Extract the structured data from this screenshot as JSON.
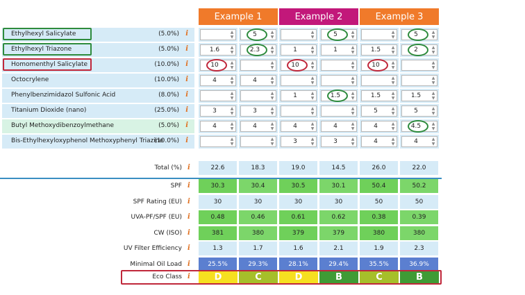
{
  "examples": [
    {
      "label": "Example 1",
      "color": "#f07a2a"
    },
    {
      "label": "Example 2",
      "color": "#c2187a"
    },
    {
      "label": "Example 3",
      "color": "#f07a2a"
    }
  ],
  "filters": [
    {
      "name": "Ethylhexyl Salicylate",
      "pct": "(5.0%)",
      "values": [
        "",
        "5",
        "",
        "5",
        "",
        "5"
      ]
    },
    {
      "name": "Ethylhexyl Triazone",
      "pct": "(5.0%)",
      "values": [
        "1.6",
        "2.3",
        "1",
        "1",
        "1.5",
        "2"
      ]
    },
    {
      "name": "Homomenthyl Salicylate",
      "pct": "(10.0%)",
      "values": [
        "10",
        "",
        "10",
        "",
        "10",
        ""
      ]
    },
    {
      "name": "Octocrylene",
      "pct": "(10.0%)",
      "values": [
        "4",
        "4",
        "",
        "",
        "",
        ""
      ]
    },
    {
      "name": "Phenylbenzimidazol Sulfonic Acid",
      "pct": "(8.0%)",
      "values": [
        "",
        "",
        "1",
        "1.5",
        "1.5",
        "1.5"
      ]
    },
    {
      "name": "Titanium Dioxide (nano)",
      "pct": "(25.0%)",
      "values": [
        "3",
        "3",
        "",
        "",
        "5",
        "5"
      ]
    },
    {
      "name": "Butyl Methoxydibenzoylmethane",
      "pct": "(5.0%)",
      "values": [
        "4",
        "4",
        "4",
        "4",
        "4",
        "4.5"
      ]
    },
    {
      "name": "Bis-Ethylhexyloxyphenol Methoxyphenyl Triazine",
      "pct": "(10.0%)",
      "values": [
        "",
        "",
        "3",
        "3",
        "4",
        "4"
      ]
    }
  ],
  "info_glyph": "i",
  "spin_up": "▲",
  "spin_down": "▼",
  "total": {
    "label": "Total (%)",
    "values": [
      "22.6",
      "18.3",
      "19.0",
      "14.5",
      "26.0",
      "22.0"
    ]
  },
  "results": [
    {
      "label": "SPF",
      "values": [
        "30.3",
        "30.4",
        "30.5",
        "30.1",
        "50.4",
        "50.2"
      ]
    },
    {
      "label": "SPF Rating (EU)",
      "values": [
        "30",
        "30",
        "30",
        "30",
        "50",
        "50"
      ]
    },
    {
      "label": "UVA-PF/SPF (EU)",
      "values": [
        "0.48",
        "0.46",
        "0.61",
        "0.62",
        "0.38",
        "0.39"
      ]
    },
    {
      "label": "CW (ISO)",
      "values": [
        "381",
        "380",
        "379",
        "379",
        "380",
        "380"
      ]
    },
    {
      "label": "UV Filter Efficiency",
      "values": [
        "1.3",
        "1.7",
        "1.6",
        "2.1",
        "1.9",
        "2.3"
      ]
    },
    {
      "label": "Minimal Oil Load",
      "values": [
        "25.5%",
        "29.3%",
        "28.1%",
        "29.4%",
        "35.5%",
        "36.9%"
      ]
    }
  ],
  "eco": {
    "label": "Eco Class",
    "values": [
      "D",
      "C",
      "D",
      "B",
      "C",
      "B"
    ]
  },
  "colors": {
    "light_blue": "#d6ebf7",
    "green": "#6fd05a",
    "green_light": "#7cd66a",
    "oil_blue": "#5b7fd0",
    "eco_D": "#f6e020",
    "eco_C": "#a6bf2a",
    "eco_B": "#3f9b35"
  }
}
